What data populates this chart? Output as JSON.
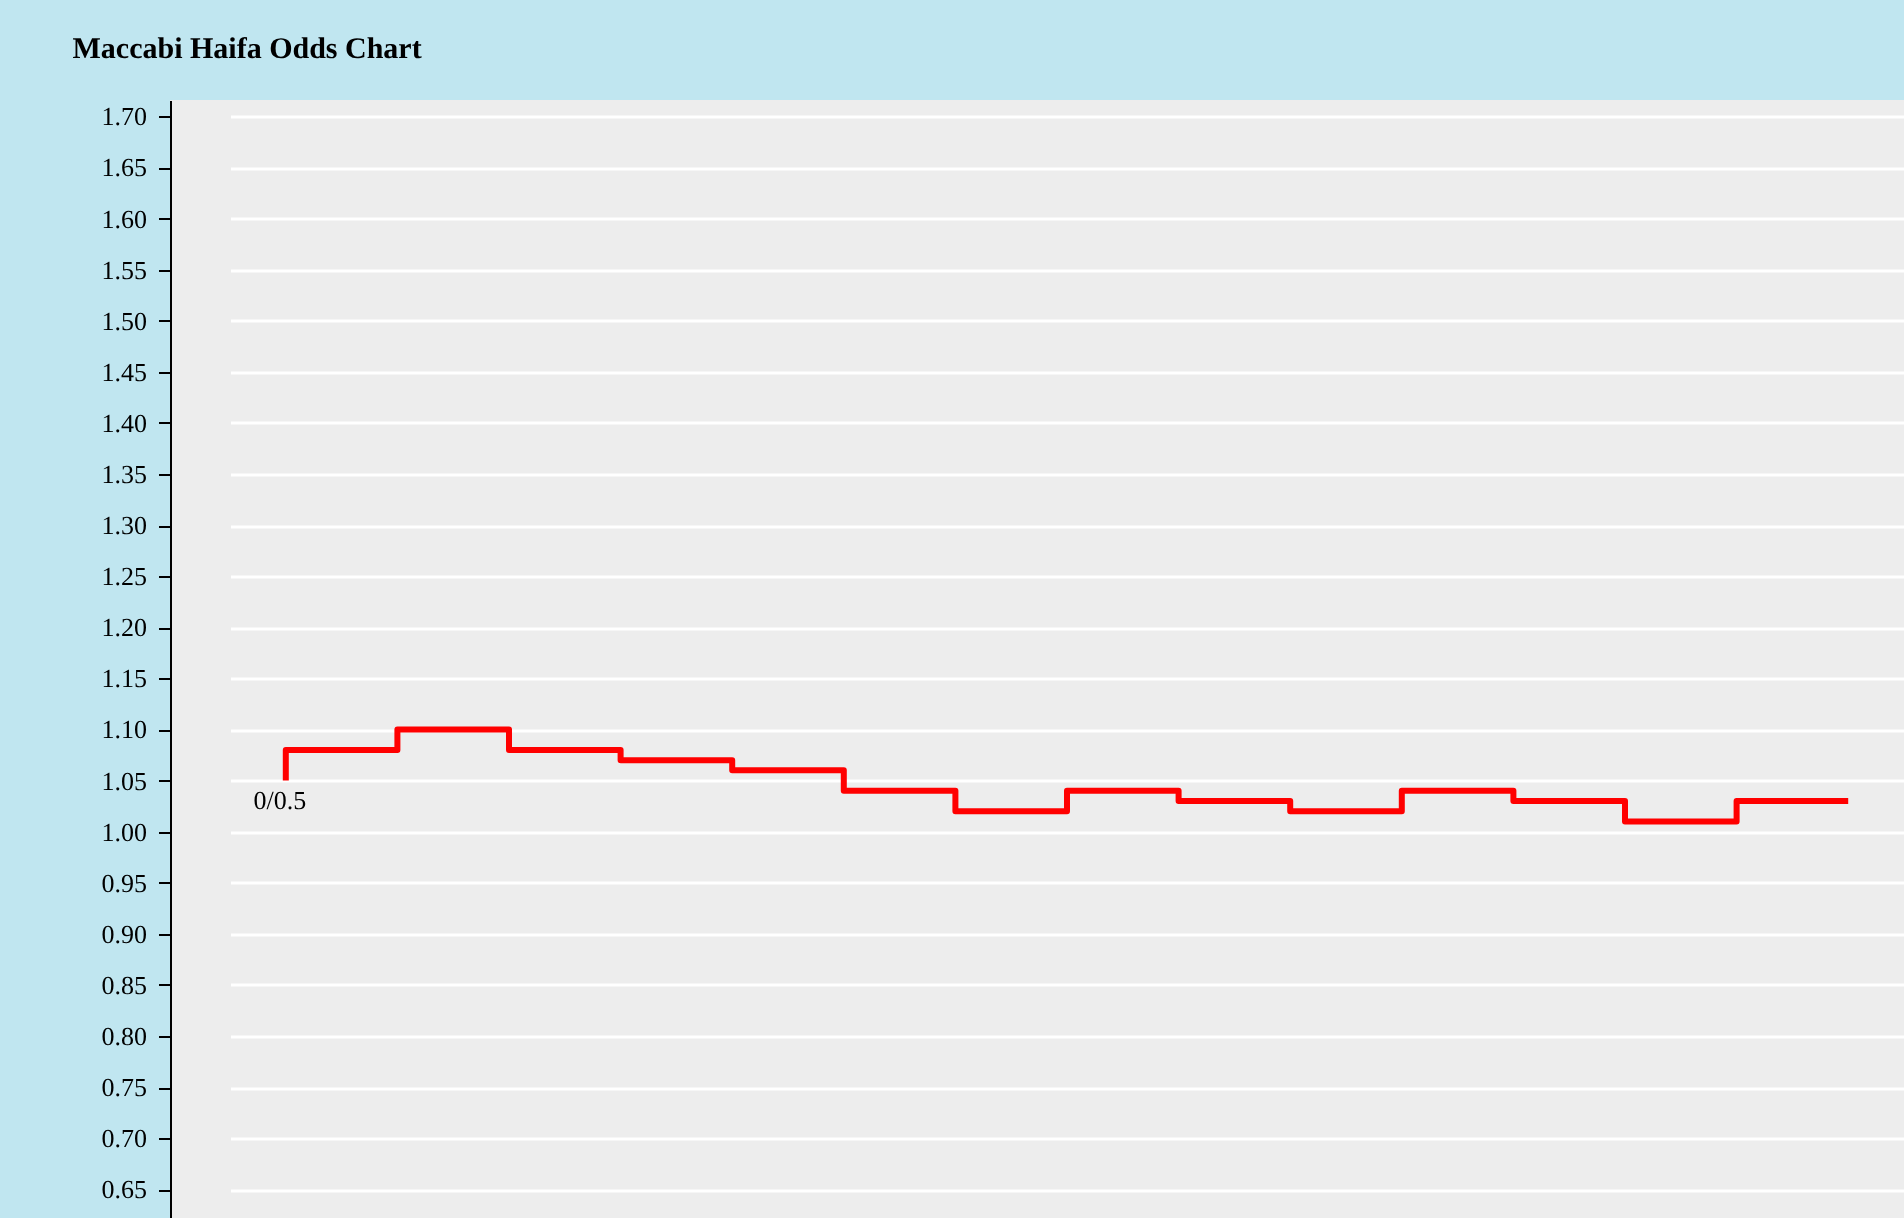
{
  "chart_data": {
    "type": "step",
    "title": "Maccabi Haifa Odds Chart",
    "categories": [
      null,
      null,
      null,
      null,
      null,
      null,
      null,
      null,
      null,
      null,
      null,
      null,
      null,
      null,
      null
    ],
    "series": [
      {
        "color": "#ff0000",
        "values": [
          1.05,
          1.08,
          1.1,
          1.08,
          1.07,
          1.06,
          1.04,
          1.02,
          1.04,
          1.03,
          1.02,
          1.04,
          1.03,
          1.01,
          1.03
        ]
      }
    ],
    "ylim": [
      0.62,
      1.716
    ],
    "yticks": [
      {
        "value": 0.65,
        "label": "0.65"
      },
      {
        "value": 0.7,
        "label": "0.70"
      },
      {
        "value": 0.75,
        "label": "0.75"
      },
      {
        "value": 0.8,
        "label": "0.80"
      },
      {
        "value": 0.85,
        "label": "0.85"
      },
      {
        "value": 0.9,
        "label": "0.90"
      },
      {
        "value": 0.95,
        "label": "0.95"
      },
      {
        "value": 1.0,
        "label": "1.00"
      },
      {
        "value": 1.05,
        "label": "1.05"
      },
      {
        "value": 1.1,
        "label": "1.10"
      },
      {
        "value": 1.15,
        "label": "1.15"
      },
      {
        "value": 1.2,
        "label": "1.20"
      },
      {
        "value": 1.25,
        "label": "1.25"
      },
      {
        "value": 1.3,
        "label": "1.30"
      },
      {
        "value": 1.35,
        "label": "1.35"
      },
      {
        "value": 1.4,
        "label": "1.40"
      },
      {
        "value": 1.45,
        "label": "1.45"
      },
      {
        "value": 1.5,
        "label": "1.50"
      },
      {
        "value": 1.55,
        "label": "1.55"
      },
      {
        "value": 1.6,
        "label": "1.60"
      },
      {
        "value": 1.65,
        "label": "1.65"
      },
      {
        "value": 1.7,
        "label": "1.70"
      }
    ],
    "grid": "y",
    "tick_labels": "y",
    "line_style": "solid",
    "annotations": [
      "0/0.5"
    ]
  }
}
